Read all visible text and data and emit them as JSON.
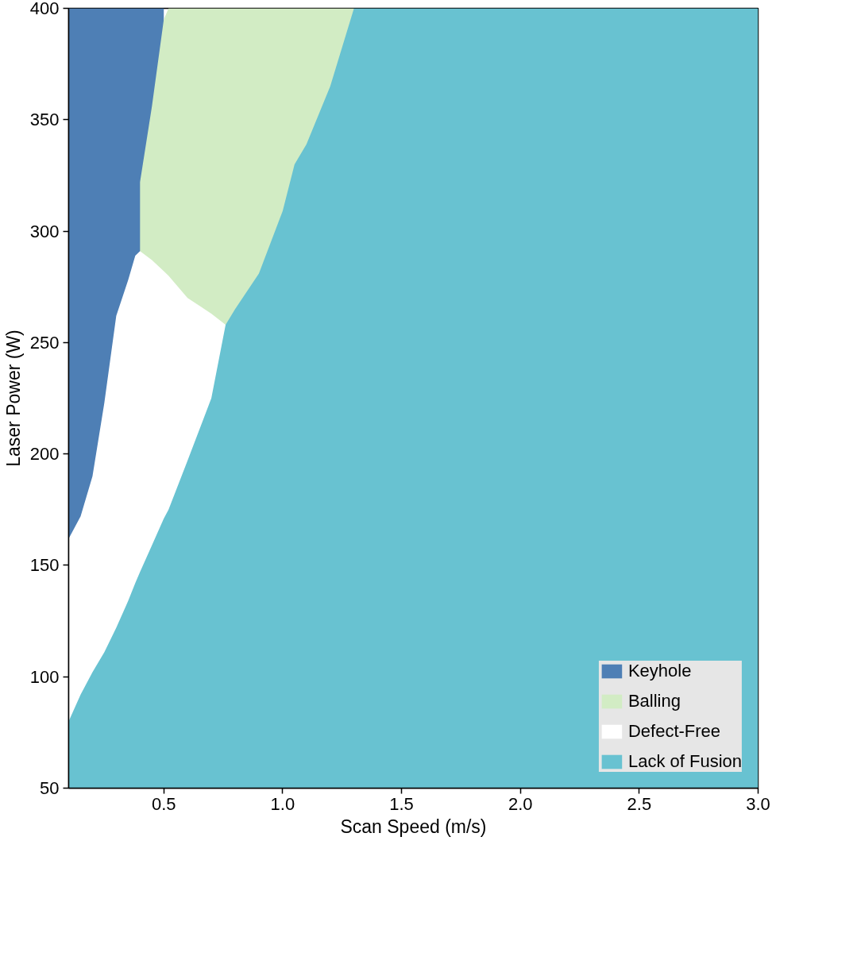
{
  "chart_data": {
    "type": "area",
    "xlabel": "Scan Speed (m/s)",
    "ylabel": "Laser Power (W)",
    "x": [
      0.1,
      0.15,
      0.2,
      0.25,
      0.3,
      0.35,
      0.38,
      0.4,
      0.45,
      0.5,
      0.52,
      0.6,
      0.7,
      0.76,
      0.8,
      0.9,
      1.0,
      1.05,
      1.1,
      1.2,
      1.3,
      2.0,
      3.0
    ],
    "series": [
      {
        "name": "Keyhole",
        "color": "#4e7fb5",
        "values": [
          400,
          400,
          400,
          400,
          400,
          400,
          400,
          400,
          400,
          400,
          null,
          null,
          null,
          null,
          null,
          null,
          null,
          null,
          null,
          null,
          null,
          null,
          null
        ]
      },
      {
        "name": "Balling",
        "color": "#d2ecc4",
        "values": [
          null,
          null,
          null,
          null,
          null,
          null,
          null,
          322,
          356,
          395,
          400,
          400,
          400,
          400,
          400,
          400,
          400,
          400,
          400,
          400,
          400,
          null,
          null
        ]
      },
      {
        "name": "Defect-Free",
        "color": "#ffffff",
        "values": [
          162,
          172,
          190,
          223,
          262,
          278,
          289,
          291,
          287,
          282,
          280,
          270,
          263,
          258,
          null,
          null,
          null,
          null,
          null,
          null,
          null,
          null,
          null
        ]
      },
      {
        "name": "Lack of Fusion",
        "color": "#68c2d1",
        "values": [
          80,
          92,
          102,
          111,
          122,
          134,
          142,
          147,
          159,
          171,
          175,
          197,
          225,
          258,
          265,
          281,
          309,
          330,
          339,
          365,
          400,
          400,
          400
        ]
      }
    ],
    "xlim": [
      0.1,
      3.0
    ],
    "ylim": [
      50,
      400
    ],
    "xticks": [
      {
        "value": 0.5,
        "label": "0.5"
      },
      {
        "value": 1.0,
        "label": "1.0"
      },
      {
        "value": 1.5,
        "label": "1.5"
      },
      {
        "value": 2.0,
        "label": "2.0"
      },
      {
        "value": 2.5,
        "label": "2.5"
      },
      {
        "value": 3.0,
        "label": "3.0"
      }
    ],
    "yticks": [
      50,
      100,
      150,
      200,
      250,
      300,
      350,
      400
    ],
    "grid": false,
    "legend": "bottom right"
  }
}
